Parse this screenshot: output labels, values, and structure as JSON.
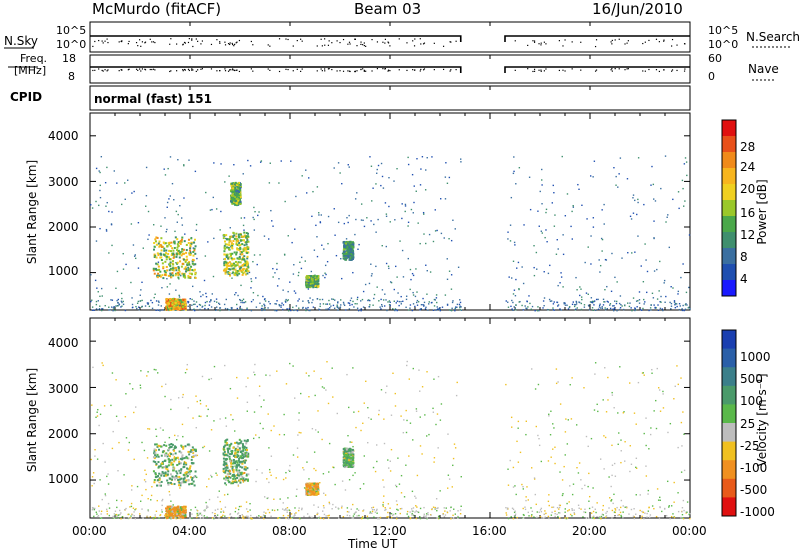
{
  "header": {
    "station": "McMurdo (fitACF)",
    "beam": "Beam 03",
    "date": "16/Jun/2010"
  },
  "top_panel": {
    "left_label": "N.Sky",
    "right_label": "N.Search",
    "left_ticks": [
      "10^5",
      "10^0"
    ],
    "right_ticks": [
      "10^5",
      "10^0"
    ]
  },
  "freq_panel": {
    "left_label_1": "Freq.",
    "left_label_2": "[MHz]",
    "right_label": "Nave",
    "left_ticks": [
      "18",
      "8"
    ],
    "right_ticks": [
      "60",
      "0"
    ]
  },
  "cpid": {
    "label": "CPID",
    "value": "normal (fast) 151"
  },
  "x_axis": {
    "label": "Time UT",
    "ticks": [
      "00:00",
      "04:00",
      "08:00",
      "12:00",
      "16:00",
      "20:00",
      "00:00"
    ]
  },
  "power_panel": {
    "ylabel": "Slant Range [km]",
    "yticks": [
      "1000",
      "2000",
      "3000",
      "4000"
    ],
    "colorbar_label": "Power [dB]",
    "colorbar_ticks": [
      "4",
      "8",
      "12",
      "16",
      "20",
      "24",
      "28"
    ]
  },
  "velocity_panel": {
    "ylabel": "Slant Range [km]",
    "yticks": [
      "1000",
      "2000",
      "3000",
      "4000"
    ],
    "colorbar_label": "Velocity [m s⁻¹]",
    "colorbar_ticks": [
      "1000",
      "500",
      "100",
      "25",
      "-25",
      "-100",
      "-500",
      "-1000"
    ]
  },
  "colors": {
    "power_scale": [
      "#1a1aff",
      "#1f4fb0",
      "#3a6fa0",
      "#3f8f6e",
      "#4aa84a",
      "#9ac82a",
      "#f0d020",
      "#f7b51e",
      "#f08a1a",
      "#e8501a",
      "#e01010"
    ],
    "velocity_scale": [
      "#1a3fb0",
      "#2a5fa8",
      "#3b7f8a",
      "#4a9a6a",
      "#5ab84a",
      "#bdbdbd",
      "#f0c020",
      "#f09020",
      "#e85a1a",
      "#e01010"
    ]
  },
  "chart_data": {
    "type": "heatmap",
    "title": "McMurdo (fitACF)  Beam 03  16/Jun/2010",
    "xlabel": "Time UT",
    "xlim": [
      0,
      24
    ],
    "data_gap_hours": [
      14.83,
      16.6
    ],
    "panels": [
      {
        "name": "Power",
        "ylabel": "Slant Range [km]",
        "ylim": [
          180,
          4500
        ],
        "colorbar": {
          "label": "Power [dB]",
          "ticks": [
            4,
            8,
            12,
            16,
            20,
            24,
            28
          ]
        },
        "echo_regions": [
          {
            "t_start": 2.5,
            "t_end": 4.2,
            "range_min": 900,
            "range_max": 1800,
            "peak_db": 24
          },
          {
            "t_start": 3.0,
            "t_end": 3.8,
            "range_min": 200,
            "range_max": 450,
            "peak_db": 28
          },
          {
            "t_start": 5.3,
            "t_end": 6.3,
            "range_min": 950,
            "range_max": 1900,
            "peak_db": 22
          },
          {
            "t_start": 5.6,
            "t_end": 6.0,
            "range_min": 2500,
            "range_max": 3000,
            "peak_db": 18
          },
          {
            "t_start": 8.6,
            "t_end": 9.1,
            "range_min": 700,
            "range_max": 950,
            "peak_db": 18
          },
          {
            "t_start": 10.1,
            "t_end": 10.5,
            "range_min": 1300,
            "range_max": 1700,
            "peak_db": 14
          }
        ]
      },
      {
        "name": "Velocity",
        "ylabel": "Slant Range [km]",
        "ylim": [
          180,
          4500
        ],
        "colorbar": {
          "label": "Velocity [m s-1]",
          "ticks": [
            1000,
            500,
            100,
            25,
            -25,
            -100,
            -500,
            -1000
          ]
        },
        "echo_regions": [
          {
            "t_start": 2.5,
            "t_end": 4.2,
            "range_min": 900,
            "range_max": 1800,
            "velocity": 200
          },
          {
            "t_start": 3.0,
            "t_end": 3.8,
            "range_min": 200,
            "range_max": 450,
            "velocity": -200
          },
          {
            "t_start": 5.3,
            "t_end": 6.3,
            "range_min": 950,
            "range_max": 1900,
            "velocity": 300
          },
          {
            "t_start": 8.6,
            "t_end": 9.1,
            "range_min": 700,
            "range_max": 950,
            "velocity": -150
          },
          {
            "t_start": 10.1,
            "t_end": 10.5,
            "range_min": 1300,
            "range_max": 1700,
            "velocity": 120
          }
        ]
      }
    ]
  }
}
